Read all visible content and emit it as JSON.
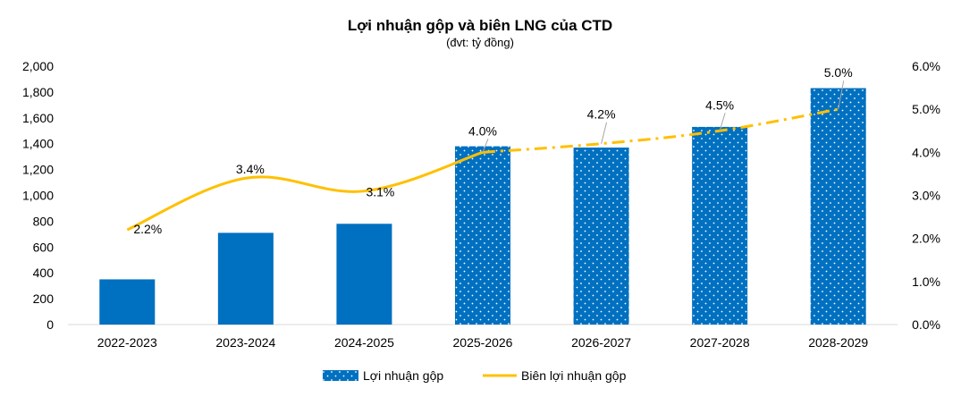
{
  "chart_data": {
    "type": "bar",
    "title": "Lợi nhuận gộp và biên LNG của CTD",
    "subtitle": "(đvt: tỷ đồng)",
    "categories": [
      "2022-2023",
      "2023-2024",
      "2024-2025",
      "2025-2026",
      "2026-2027",
      "2027-2028",
      "2028-2029"
    ],
    "series": [
      {
        "name": "Lợi nhuận gộp",
        "type": "bar",
        "axis": "left",
        "values": [
          350,
          710,
          780,
          1380,
          1370,
          1530,
          1830
        ],
        "forecast_from_index": 3,
        "color": "#0070C0"
      },
      {
        "name": "Biên lợi nhuận gộp",
        "type": "line",
        "axis": "right",
        "values": [
          2.2,
          3.4,
          3.1,
          4.0,
          4.2,
          4.5,
          5.0
        ],
        "labels": [
          "2.2%",
          "3.4%",
          "3.1%",
          "4.0%",
          "4.2%",
          "4.5%",
          "5.0%"
        ],
        "forecast_from_index": 3,
        "color": "#FFC000"
      }
    ],
    "y_left": {
      "min": 0,
      "max": 2000,
      "step": 200,
      "tick_labels": [
        "0",
        "200",
        "400",
        "600",
        "800",
        "1,000",
        "1,200",
        "1,400",
        "1,600",
        "1,800",
        "2,000"
      ]
    },
    "y_right": {
      "min": 0,
      "max": 6,
      "step": 1,
      "tick_labels": [
        "0.0%",
        "1.0%",
        "2.0%",
        "3.0%",
        "4.0%",
        "5.0%",
        "6.0%"
      ]
    },
    "grid": false,
    "legend_position": "bottom"
  }
}
